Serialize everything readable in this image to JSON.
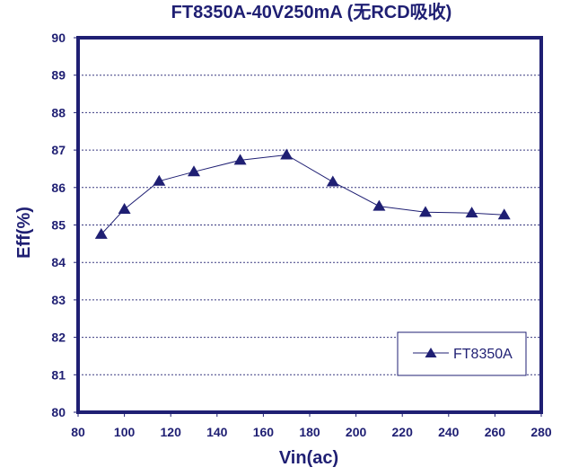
{
  "chart_data": {
    "type": "line",
    "title": "FT8350A-40V250mA  (无RCD吸收)",
    "xlabel": "Vin(ac)",
    "ylabel": "Eff(%)",
    "xlim": [
      80,
      280
    ],
    "ylim": [
      80,
      90
    ],
    "xticks": [
      80,
      100,
      120,
      140,
      160,
      180,
      200,
      220,
      240,
      260,
      280
    ],
    "yticks": [
      80,
      81,
      82,
      83,
      84,
      85,
      86,
      87,
      88,
      89,
      90
    ],
    "grid": "horizontal-dashed",
    "legend_position": "lower-right",
    "series": [
      {
        "name": "FT8350A",
        "color": "#1F1F73",
        "marker": "triangle",
        "x": [
          90,
          100,
          115,
          130,
          150,
          170,
          190,
          210,
          230,
          250,
          264
        ],
        "y": [
          84.75,
          85.42,
          86.17,
          86.42,
          86.73,
          86.87,
          86.15,
          85.5,
          85.34,
          85.32,
          85.27
        ]
      }
    ]
  }
}
